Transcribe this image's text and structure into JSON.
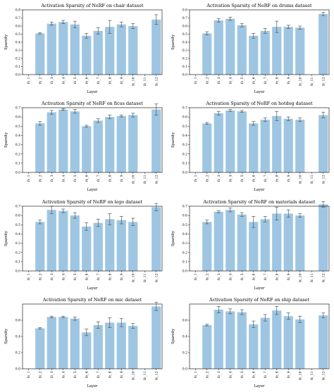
{
  "colors": {
    "bar": "#9ec6e2",
    "error": "#555555",
    "axis": "#000000"
  },
  "chart_data": [
    {
      "type": "bar",
      "title": "Activation Sparsity of NeRF on chair dataset",
      "xlabel": "Layer",
      "ylabel": "Sparsity",
      "categories": [
        "fc_1",
        "fc_2",
        "fc_3",
        "fc_4",
        "fc_5",
        "fc_6",
        "fc_7",
        "fc_8",
        "fc_9",
        "fc_10",
        "fc_11",
        "fc_12"
      ],
      "values": [
        0.0,
        0.51,
        0.63,
        0.65,
        0.62,
        0.48,
        0.54,
        0.59,
        0.62,
        0.6,
        0.0,
        0.68
      ],
      "errors": [
        0.0,
        0.01,
        0.02,
        0.02,
        0.04,
        0.03,
        0.04,
        0.08,
        0.03,
        0.03,
        0.0,
        0.06
      ],
      "ylim": [
        0,
        0.8
      ],
      "yticks": [
        0.0,
        0.1,
        0.2,
        0.3,
        0.4,
        0.5,
        0.6,
        0.7,
        0.8
      ],
      "ytick_labels": [
        "0.0",
        "0.1",
        "0.2",
        "0.3",
        "0.4",
        "0.5",
        "0.6",
        "0.7",
        "0.8"
      ],
      "grid": false
    },
    {
      "type": "bar",
      "title": "Activation Sparsity of NeRF on drums dataset",
      "xlabel": "Layer",
      "ylabel": "Sparsity",
      "categories": [
        "fc_1",
        "fc_2",
        "fc_3",
        "fc_4",
        "fc_5",
        "fc_6",
        "fc_7",
        "fc_8",
        "fc_9",
        "fc_10",
        "fc_11",
        "fc_12"
      ],
      "values": [
        0.0,
        0.51,
        0.67,
        0.69,
        0.61,
        0.48,
        0.54,
        0.59,
        0.59,
        0.58,
        0.0,
        0.75
      ],
      "errors": [
        0.0,
        0.02,
        0.02,
        0.02,
        0.02,
        0.03,
        0.03,
        0.07,
        0.02,
        0.02,
        0.0,
        0.02
      ],
      "ylim": [
        0,
        0.8
      ],
      "yticks": [
        0.0,
        0.1,
        0.2,
        0.3,
        0.4,
        0.5,
        0.6,
        0.7,
        0.8
      ],
      "ytick_labels": [
        "0.0",
        "0.1",
        "0.2",
        "0.3",
        "0.4",
        "0.5",
        "0.6",
        "0.7",
        "0.8"
      ],
      "grid": false
    },
    {
      "type": "bar",
      "title": "Activation Sparsity of NeRF on ficus dataset",
      "xlabel": "Layer",
      "ylabel": "Sparsity",
      "categories": [
        "fc_1",
        "fc_2",
        "fc_3",
        "fc_4",
        "fc_5",
        "fc_6",
        "fc_7",
        "fc_8",
        "fc_9",
        "fc_10",
        "fc_11",
        "fc_12"
      ],
      "values": [
        0.0,
        0.53,
        0.65,
        0.68,
        0.66,
        0.5,
        0.56,
        0.6,
        0.61,
        0.62,
        0.0,
        0.68
      ],
      "errors": [
        0.0,
        0.02,
        0.02,
        0.01,
        0.02,
        0.01,
        0.02,
        0.02,
        0.01,
        0.02,
        0.0,
        0.06
      ],
      "ylim": [
        0,
        0.7
      ],
      "yticks": [
        0.0,
        0.1,
        0.2,
        0.3,
        0.4,
        0.5,
        0.6,
        0.7
      ],
      "ytick_labels": [
        "0.0",
        "0.1",
        "0.2",
        "0.3",
        "0.4",
        "0.5",
        "0.6",
        "0.7"
      ],
      "grid": false
    },
    {
      "type": "bar",
      "title": "Activation Sparsity of NeRF on hotdog dataset",
      "xlabel": "Layer",
      "ylabel": "Sparsity",
      "categories": [
        "fc_1",
        "fc_2",
        "fc_3",
        "fc_4",
        "fc_5",
        "fc_6",
        "fc_7",
        "fc_8",
        "fc_9",
        "fc_10",
        "fc_11",
        "fc_12"
      ],
      "values": [
        0.0,
        0.53,
        0.64,
        0.67,
        0.66,
        0.53,
        0.57,
        0.61,
        0.58,
        0.57,
        0.0,
        0.62
      ],
      "errors": [
        0.0,
        0.01,
        0.02,
        0.01,
        0.01,
        0.02,
        0.02,
        0.05,
        0.02,
        0.02,
        0.0,
        0.03
      ],
      "ylim": [
        0,
        0.7
      ],
      "yticks": [
        0.0,
        0.1,
        0.2,
        0.3,
        0.4,
        0.5,
        0.6,
        0.7
      ],
      "ytick_labels": [
        "0.0",
        "0.1",
        "0.2",
        "0.3",
        "0.4",
        "0.5",
        "0.6",
        "0.7"
      ],
      "grid": false
    },
    {
      "type": "bar",
      "title": "Activation Sparsity of NeRF on lego dataset",
      "xlabel": "Layer",
      "ylabel": "Sparsity",
      "categories": [
        "fc_1",
        "fc_2",
        "fc_3",
        "fc_4",
        "fc_5",
        "fc_6",
        "fc_7",
        "fc_8",
        "fc_9",
        "fc_10",
        "fc_11",
        "fc_12"
      ],
      "values": [
        0.0,
        0.53,
        0.66,
        0.65,
        0.6,
        0.48,
        0.52,
        0.56,
        0.55,
        0.53,
        0.0,
        0.69
      ],
      "errors": [
        0.0,
        0.02,
        0.04,
        0.02,
        0.03,
        0.04,
        0.04,
        0.06,
        0.04,
        0.04,
        0.0,
        0.04
      ],
      "ylim": [
        0,
        0.7
      ],
      "yticks": [
        0.0,
        0.1,
        0.2,
        0.3,
        0.4,
        0.5,
        0.6,
        0.7
      ],
      "ytick_labels": [
        "0.0",
        "0.1",
        "0.2",
        "0.3",
        "0.4",
        "0.5",
        "0.6",
        "0.7"
      ],
      "grid": false
    },
    {
      "type": "bar",
      "title": "Activation Sparsity of NeRF on materials dataset",
      "xlabel": "Layer",
      "ylabel": "Sparsity",
      "categories": [
        "fc_1",
        "fc_2",
        "fc_3",
        "fc_4",
        "fc_5",
        "fc_6",
        "fc_7",
        "fc_8",
        "fc_9",
        "fc_10",
        "fc_11",
        "fc_12"
      ],
      "values": [
        0.0,
        0.53,
        0.64,
        0.66,
        0.61,
        0.53,
        0.56,
        0.62,
        0.62,
        0.6,
        0.0,
        0.72
      ],
      "errors": [
        0.0,
        0.02,
        0.01,
        0.02,
        0.02,
        0.06,
        0.03,
        0.07,
        0.04,
        0.02,
        0.0,
        0.03
      ],
      "ylim": [
        0,
        0.7
      ],
      "yticks": [
        0.0,
        0.1,
        0.2,
        0.3,
        0.4,
        0.5,
        0.6,
        0.7
      ],
      "ytick_labels": [
        "0.0",
        "0.1",
        "0.2",
        "0.3",
        "0.4",
        "0.5",
        "0.6",
        "0.7"
      ],
      "grid": false
    },
    {
      "type": "bar",
      "title": "Activation Sparsity of NeRF on mic dataset",
      "xlabel": "Layer",
      "ylabel": "Sparsity",
      "categories": [
        "fc_1",
        "fc_2",
        "fc_3",
        "fc_4",
        "fc_5",
        "fc_6",
        "fc_7",
        "fc_8",
        "fc_9",
        "fc_10",
        "fc_11",
        "fc_12"
      ],
      "values": [
        0.0,
        0.5,
        0.64,
        0.64,
        0.62,
        0.45,
        0.54,
        0.57,
        0.57,
        0.53,
        0.0,
        0.77
      ],
      "errors": [
        0.0,
        0.01,
        0.01,
        0.01,
        0.02,
        0.04,
        0.04,
        0.06,
        0.05,
        0.03,
        0.0,
        0.05
      ],
      "ylim": [
        0,
        0.8
      ],
      "yticks": [
        0.0,
        0.2,
        0.4,
        0.6
      ],
      "ytick_labels": [
        "0.0",
        "0.2",
        "0.4",
        "0.6"
      ],
      "grid": false
    },
    {
      "type": "bar",
      "title": "Activation Sparsity of NeRF on ship dataset",
      "xlabel": "Layer",
      "ylabel": "Sparsity",
      "categories": [
        "fc_1",
        "fc_2",
        "fc_3",
        "fc_4",
        "fc_5",
        "fc_6",
        "fc_7",
        "fc_8",
        "fc_9",
        "fc_10",
        "fc_11",
        "fc_12"
      ],
      "values": [
        0.0,
        0.54,
        0.73,
        0.71,
        0.7,
        0.55,
        0.63,
        0.72,
        0.65,
        0.61,
        0.0,
        0.66
      ],
      "errors": [
        0.0,
        0.01,
        0.04,
        0.03,
        0.03,
        0.04,
        0.04,
        0.05,
        0.04,
        0.04,
        0.0,
        0.03
      ],
      "ylim": [
        0,
        0.8
      ],
      "yticks": [
        0.0,
        0.2,
        0.4,
        0.6
      ],
      "ytick_labels": [
        "0.0",
        "0.2",
        "0.4",
        "0.6"
      ],
      "grid": false
    }
  ]
}
